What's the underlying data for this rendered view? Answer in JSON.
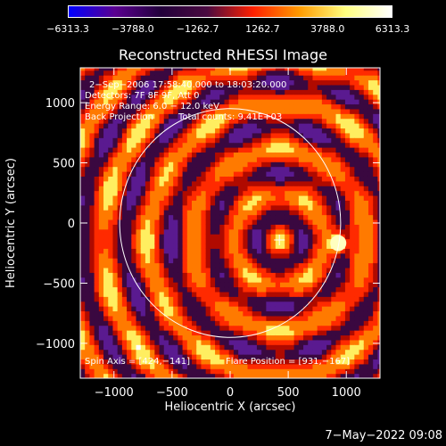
{
  "colorbar": {
    "labels": [
      "−6313.3",
      "−3788.0",
      "−1262.7",
      "1262.7",
      "3788.0",
      "6313.3"
    ],
    "colors": [
      "#0000ff",
      "#5a0090",
      "#22003a",
      "#4a0a40",
      "#ff2000",
      "#ff9a00",
      "#ffff80",
      "#ffffff"
    ]
  },
  "title": "Reconstructed RHESSI Image",
  "info": {
    "line1": "2−Sep−2006 17:58:40.000 to 18:03:20.000",
    "line2": "Detectors: 7F 8F 9F, Att 0",
    "line3": "Energy Range: 6.0 − 12.0 keV",
    "line4a": "Back Projection",
    "line4b": "Total counts: 9.41E+03",
    "spin_axis": "Spin Axis = [424,−141]",
    "flare_position": "Flare Position = [931,−167]"
  },
  "footer_date": "7−May−2022 09:08",
  "chart_data": {
    "type": "heatmap",
    "title": "Reconstructed RHESSI Image",
    "xlabel": "Heliocentric X (arcsec)",
    "ylabel": "Heliocentric Y (arcsec)",
    "xlim": [
      -1290,
      1290
    ],
    "ylim": [
      -1290,
      1290
    ],
    "xticks": [
      -1000,
      -500,
      0,
      500,
      1000
    ],
    "yticks": [
      -1000,
      -500,
      0,
      500,
      1000
    ],
    "xtick_labels": [
      "−1000",
      "−500",
      "0",
      "500",
      "1000"
    ],
    "ytick_labels": [
      "−1000",
      "−500",
      "0",
      "500",
      "1000"
    ],
    "color_range": [
      -6313.3,
      6313.3
    ],
    "solar_limb_radius": 951,
    "spin_axis": [
      424,
      -141
    ],
    "flare_position": [
      931,
      -167
    ]
  }
}
